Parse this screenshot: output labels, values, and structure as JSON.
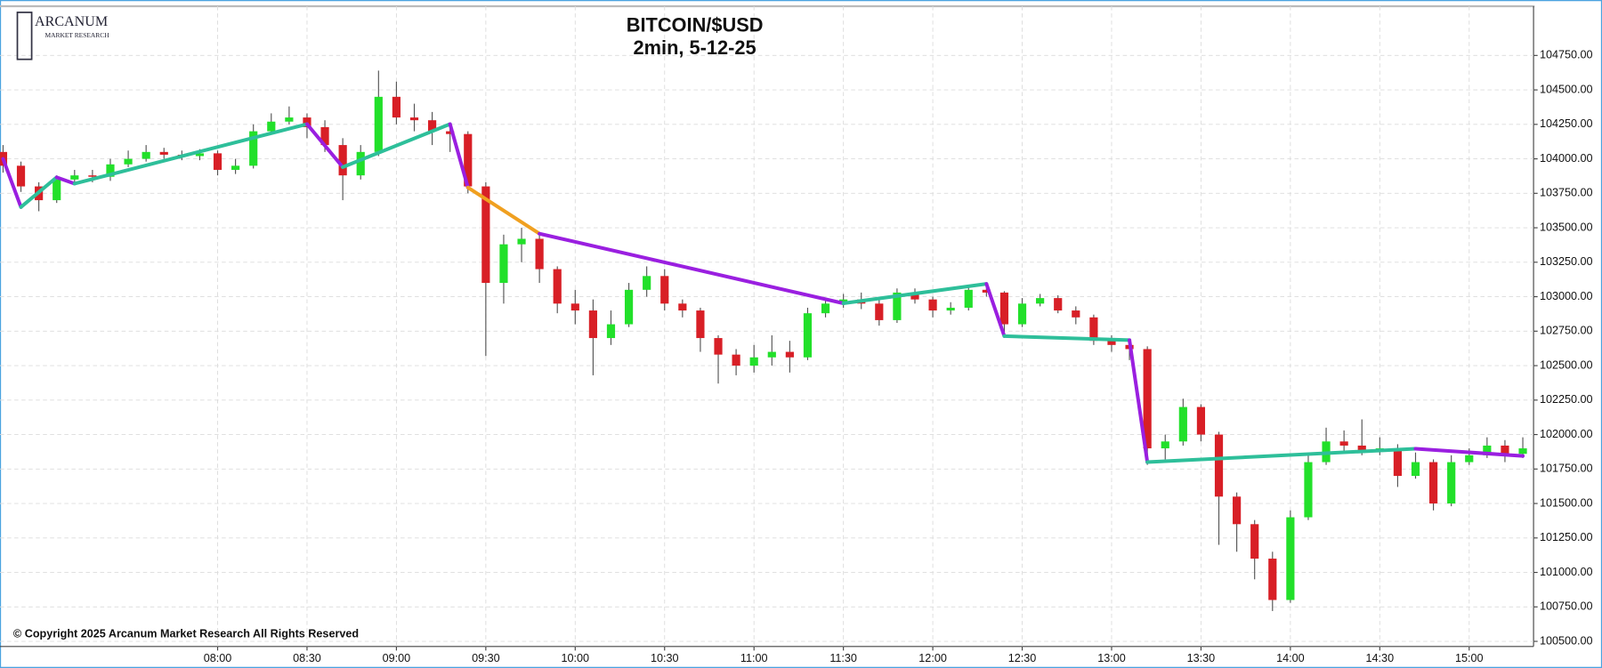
{
  "chart_data": {
    "type": "candlestick",
    "title": "BITCOIN/$USD",
    "subtitle": "2min, 5-12-25",
    "logo_title": "ARCANUM",
    "logo_subtitle": "MARKET RESEARCH",
    "copyright": "© Copyright 2025 Arcanum Market Research All Rights Reserved",
    "up_color": "#22e02a",
    "down_color": "#d81f26",
    "grid": true,
    "categories": [
      null,
      null,
      null,
      null,
      null,
      null,
      null,
      null,
      null,
      null,
      null,
      null,
      "08:00",
      null,
      null,
      null,
      null,
      "08:30",
      null,
      null,
      null,
      null,
      "09:00",
      null,
      null,
      null,
      null,
      "09:30",
      null,
      null,
      null,
      null,
      "10:00",
      null,
      null,
      null,
      null,
      "10:30",
      null,
      null,
      null,
      null,
      "11:00",
      null,
      null,
      null,
      null,
      "11:30",
      null,
      null,
      null,
      null,
      "12:00",
      null,
      null,
      null,
      null,
      "12:30",
      null,
      null,
      null,
      null,
      "13:00",
      null,
      null,
      null,
      null,
      "13:30",
      null,
      null,
      null,
      null,
      "14:00",
      null,
      null,
      null,
      null,
      "14:30",
      null,
      null,
      null,
      null,
      "15:00",
      null,
      null,
      null
    ],
    "open": [
      104050,
      103950,
      103800,
      103700,
      103850,
      103880,
      103870,
      103960,
      104000,
      104050,
      104030,
      104020,
      104040,
      103920,
      103950,
      104200,
      104270,
      104300,
      104230,
      104100,
      103880,
      104050,
      104450,
      104300,
      104280,
      104200,
      104180,
      103800,
      103100,
      103380,
      103420,
      103200,
      102950,
      102900,
      102700,
      102800,
      103050,
      103150,
      102950,
      102900,
      102700,
      102580,
      102500,
      102560,
      102600,
      102560,
      102880,
      102950,
      102980,
      102950,
      102830,
      103030,
      102980,
      102900,
      102920,
      103050,
      103030,
      102800,
      102950,
      102990,
      102900,
      102850,
      102680,
      102650,
      102620,
      101900,
      101950,
      102200,
      102000,
      101550,
      101350,
      101100,
      100800,
      101400,
      101800,
      101950,
      101920,
      101880,
      101900,
      101700,
      101800,
      101500,
      101800,
      101850,
      101920,
      101860
    ],
    "high": [
      104100,
      103980,
      103830,
      103880,
      103920,
      103920,
      104000,
      104060,
      104100,
      104080,
      104060,
      104070,
      104060,
      104000,
      104250,
      104330,
      104380,
      104330,
      104280,
      104150,
      104100,
      104640,
      104560,
      104400,
      104340,
      104260,
      104200,
      103830,
      103450,
      103500,
      103450,
      103220,
      103050,
      102980,
      102900,
      103100,
      103220,
      103200,
      102980,
      102920,
      102720,
      102620,
      102650,
      102720,
      102680,
      102920,
      102990,
      103020,
      103030,
      102980,
      103060,
      103060,
      103000,
      102960,
      103080,
      103080,
      103040,
      102990,
      103020,
      103010,
      102930,
      102870,
      102720,
      102680,
      102640,
      102000,
      102260,
      102220,
      102020,
      101580,
      101380,
      101150,
      101450,
      101850,
      102050,
      102030,
      102110,
      101980,
      101930,
      101870,
      101820,
      101850,
      101900,
      101980,
      101960,
      101980
    ],
    "low": [
      103900,
      103760,
      103620,
      103680,
      103820,
      103830,
      103840,
      103940,
      103980,
      104000,
      103990,
      103990,
      103880,
      103890,
      103930,
      104180,
      104250,
      104150,
      104050,
      103700,
      103850,
      104020,
      104250,
      104200,
      104100,
      104050,
      103750,
      102570,
      102950,
      103250,
      103100,
      102880,
      102800,
      102430,
      102650,
      102780,
      103000,
      102900,
      102850,
      102600,
      102370,
      102430,
      102450,
      102500,
      102450,
      102540,
      102850,
      102920,
      102910,
      102790,
      102810,
      102950,
      102850,
      102870,
      102900,
      103000,
      102720,
      102780,
      102930,
      102880,
      102800,
      102650,
      102600,
      102540,
      101780,
      101820,
      101920,
      101950,
      101200,
      101150,
      100950,
      100720,
      100780,
      101380,
      101780,
      101880,
      101850,
      101850,
      101620,
      101680,
      101450,
      101480,
      101780,
      101830,
      101800,
      101830
    ],
    "close": [
      103950,
      103800,
      103700,
      103850,
      103880,
      103870,
      103960,
      104000,
      104050,
      104030,
      104020,
      104040,
      103920,
      103950,
      104200,
      104270,
      104300,
      104230,
      104100,
      103880,
      104050,
      104450,
      104300,
      104280,
      104200,
      104180,
      103800,
      103100,
      103380,
      103420,
      103200,
      102950,
      102900,
      102700,
      102800,
      103050,
      103150,
      102950,
      102900,
      102700,
      102580,
      102500,
      102560,
      102600,
      102560,
      102880,
      102950,
      102980,
      102950,
      102830,
      103030,
      102980,
      102900,
      102920,
      103050,
      103030,
      102800,
      102950,
      102990,
      102900,
      102850,
      102680,
      102650,
      102620,
      101900,
      101950,
      102200,
      102000,
      101550,
      101350,
      101100,
      100800,
      101400,
      101800,
      101950,
      101920,
      101880,
      101900,
      101700,
      101800,
      101500,
      101800,
      101850,
      101920,
      101860,
      101900
    ],
    "zigzag": {
      "values": [
        104000,
        103650,
        null,
        103866,
        103820,
        null,
        null,
        null,
        null,
        null,
        null,
        null,
        null,
        null,
        null,
        null,
        null,
        104252,
        null,
        103940,
        null,
        null,
        null,
        null,
        null,
        104252,
        103792,
        null,
        null,
        null,
        103457,
        null,
        null,
        null,
        null,
        null,
        null,
        null,
        null,
        null,
        null,
        null,
        null,
        null,
        null,
        null,
        null,
        102952,
        null,
        null,
        null,
        null,
        null,
        null,
        null,
        103093,
        102714,
        null,
        null,
        null,
        null,
        null,
        null,
        102685,
        101800,
        null,
        null,
        null,
        null,
        null,
        null,
        null,
        null,
        null,
        null,
        null,
        null,
        null,
        null,
        101897,
        null,
        null,
        null,
        null,
        null,
        101845
      ],
      "colors": [
        "#9a1fe0",
        "#2ebf9a",
        "#9a1fe0",
        "#2ebf9a",
        "#9a1fe0",
        "#2ebf9a",
        "#9a1fe0",
        "#f0a020",
        "#9a1fe0",
        "#2ebf9a",
        "#9a1fe0",
        "#2ebf9a",
        "#9a1fe0",
        "#2ebf9a",
        "#9a1fe0"
      ]
    },
    "ylim": [
      100463,
      105107
    ],
    "yticks": [
      {
        "value": 100500,
        "label": "100500.00"
      },
      {
        "value": 100750,
        "label": "100750.00"
      },
      {
        "value": 101000,
        "label": "101000.00"
      },
      {
        "value": 101250,
        "label": "101250.00"
      },
      {
        "value": 101500,
        "label": "101500.00"
      },
      {
        "value": 101750,
        "label": "101750.00"
      },
      {
        "value": 102000,
        "label": "102000.00"
      },
      {
        "value": 102250,
        "label": "102250.00"
      },
      {
        "value": 102500,
        "label": "102500.00"
      },
      {
        "value": 102750,
        "label": "102750.00"
      },
      {
        "value": 103000,
        "label": "103000.00"
      },
      {
        "value": 103250,
        "label": "103250.00"
      },
      {
        "value": 103500,
        "label": "103500.00"
      },
      {
        "value": 103750,
        "label": "103750.00"
      },
      {
        "value": 104000,
        "label": "104000.00"
      },
      {
        "value": 104250,
        "label": "104250.00"
      },
      {
        "value": 104500,
        "label": "104500.00"
      },
      {
        "value": 104750,
        "label": "104750.00"
      }
    ]
  }
}
